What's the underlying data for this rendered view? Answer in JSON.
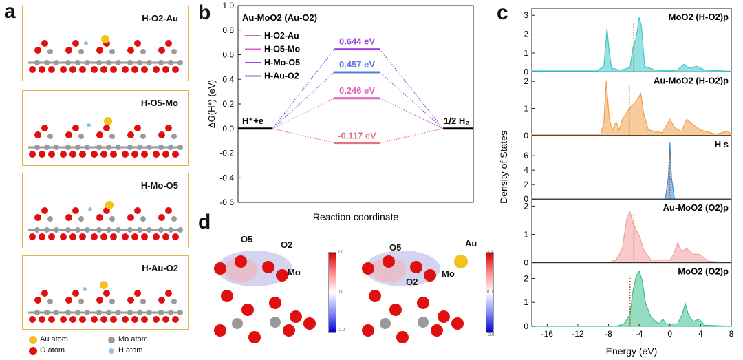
{
  "panel_labels": {
    "a": "a",
    "b": "b",
    "c": "c",
    "d": "d"
  },
  "panel_a": {
    "tiles": [
      {
        "title": "H-O2-Au"
      },
      {
        "title": "H-O5-Mo"
      },
      {
        "title": "H-Mo-O5"
      },
      {
        "title": "H-Au-O2"
      }
    ],
    "legend": {
      "au": "Au atom",
      "o": "O atom",
      "mo": "Mo atom",
      "h": "H atom"
    },
    "colors": {
      "au": "#f2c21b",
      "o": "#e01010",
      "mo": "#9a9a9a",
      "h": "#8fc4ec",
      "border": "#e3b24d"
    }
  },
  "panel_d": {
    "labels_left": {
      "o5": "O5",
      "o2": "O2",
      "mo": "Mo"
    },
    "labels_right": {
      "o5": "O5",
      "o2": "O2",
      "mo": "Mo",
      "au": "Au"
    },
    "colorbar": {
      "max": "2.0",
      "mid": "0.0",
      "min": "-2.0"
    }
  },
  "chart_data": [
    {
      "type": "line",
      "title": "Au-MoO2 (Au-O2)",
      "xlabel": "Reaction coordinate",
      "ylabel": "ΔG(H*) (eV)",
      "ylim": [
        -0.6,
        1.0
      ],
      "yticks": [
        "1.0",
        "0.8",
        "0.6",
        "0.4",
        "0.2",
        "0.0",
        "-0.2",
        "-0.4",
        "-0.6"
      ],
      "start_label": "H⁺+e",
      "end_label": "1/2 H₂",
      "series": [
        {
          "name": "H-O2-Au",
          "value": -0.117,
          "label": "-0.117 eV",
          "color": "#e8707a"
        },
        {
          "name": "H-O5-Mo",
          "value": 0.246,
          "label": "0.246 eV",
          "color": "#e060c0"
        },
        {
          "name": "H-Mo-O5",
          "value": 0.644,
          "label": "0.644 eV",
          "color": "#9b45e0"
        },
        {
          "name": "H-Au-O2",
          "value": 0.457,
          "label": "0.457 eV",
          "color": "#5a7ae0"
        }
      ]
    },
    {
      "type": "area",
      "xlabel": "Energy (eV)",
      "ylabel": "Density of States",
      "xlim": [
        -18,
        8
      ],
      "xticks": [
        "-16",
        "-12",
        "-8",
        "-4",
        "0",
        "4",
        "8"
      ],
      "panels": [
        {
          "name": "MoO2 (H-O2)p",
          "ylim": [
            0,
            3.3
          ],
          "yticks": [
            "0",
            "1",
            "2",
            "3"
          ],
          "color": "#3cc8c8",
          "dotted_x": -4.7,
          "points": [
            [
              -18,
              0.05
            ],
            [
              -9.5,
              0.05
            ],
            [
              -8.6,
              0.3
            ],
            [
              -8.2,
              2.3
            ],
            [
              -7.9,
              1.0
            ],
            [
              -7.6,
              0.2
            ],
            [
              -6.6,
              0.1
            ],
            [
              -5.8,
              0.15
            ],
            [
              -5.2,
              0.25
            ],
            [
              -4.8,
              1.3
            ],
            [
              -4.4,
              1.8
            ],
            [
              -4.0,
              2.9
            ],
            [
              -3.7,
              2.4
            ],
            [
              -3.3,
              0.3
            ],
            [
              -2,
              0.1
            ],
            [
              0,
              0.05
            ],
            [
              1,
              0.1
            ],
            [
              1.8,
              0.4
            ],
            [
              2.5,
              0.2
            ],
            [
              3.5,
              0.3
            ],
            [
              4.5,
              0.1
            ],
            [
              8,
              0.03
            ]
          ]
        },
        {
          "name": "Au-MoO2 (H-O2)p",
          "ylim": [
            0,
            2.3
          ],
          "yticks": [
            "0",
            "1",
            "2"
          ],
          "color": "#f0a04a",
          "dotted_x": -5.3,
          "points": [
            [
              -18,
              0.05
            ],
            [
              -9,
              0.05
            ],
            [
              -8.6,
              0.5
            ],
            [
              -8.3,
              2.0
            ],
            [
              -7.9,
              0.6
            ],
            [
              -7.5,
              0.2
            ],
            [
              -7,
              0.5
            ],
            [
              -6.6,
              0.2
            ],
            [
              -6.2,
              0.6
            ],
            [
              -5.5,
              0.9
            ],
            [
              -5,
              1.1
            ],
            [
              -4.6,
              1.2
            ],
            [
              -4.2,
              1.35
            ],
            [
              -3.8,
              1.55
            ],
            [
              -3.4,
              0.8
            ],
            [
              -2.8,
              0.2
            ],
            [
              -1,
              0.1
            ],
            [
              0,
              0.6
            ],
            [
              0.6,
              0.3
            ],
            [
              1.5,
              0.15
            ],
            [
              2.2,
              0.6
            ],
            [
              3,
              0.4
            ],
            [
              4,
              0.2
            ],
            [
              6,
              0.05
            ],
            [
              7.5,
              0.15
            ],
            [
              8,
              0.05
            ]
          ]
        },
        {
          "name": "H s",
          "ylim": [
            0,
            8.6
          ],
          "yticks": [
            "0",
            "2",
            "4",
            "6"
          ],
          "color": "#3a8ee0",
          "dotted_x": 0,
          "points": [
            [
              -18,
              0
            ],
            [
              -0.6,
              0
            ],
            [
              -0.2,
              3.0
            ],
            [
              0,
              7.8
            ],
            [
              0.2,
              3.0
            ],
            [
              0.6,
              0
            ],
            [
              8,
              0
            ]
          ]
        },
        {
          "name": "Au-MoO2 (O2)p",
          "ylim": [
            0,
            2.2
          ],
          "yticks": [
            "0",
            "1",
            "2"
          ],
          "color": "#f0a0a0",
          "dotted_x": -4.7,
          "points": [
            [
              -18,
              0
            ],
            [
              -8,
              0
            ],
            [
              -7,
              0.1
            ],
            [
              -6.2,
              0.5
            ],
            [
              -5.6,
              1.6
            ],
            [
              -5.2,
              1.8
            ],
            [
              -4.8,
              1.4
            ],
            [
              -4.3,
              1.1
            ],
            [
              -3.9,
              0.9
            ],
            [
              -3.5,
              0.5
            ],
            [
              -2.5,
              0.1
            ],
            [
              0,
              0.1
            ],
            [
              0.5,
              0.3
            ],
            [
              1,
              0.7
            ],
            [
              1.5,
              0.4
            ],
            [
              2.2,
              0.5
            ],
            [
              3,
              0.3
            ],
            [
              3.8,
              0.3
            ],
            [
              5,
              0.05
            ],
            [
              8,
              0
            ]
          ]
        },
        {
          "name": "MoO2 (O2)p",
          "ylim": [
            0,
            2.6
          ],
          "yticks": [
            "0",
            "1",
            "2"
          ],
          "color": "#3cc090",
          "dotted_x": -5.2,
          "points": [
            [
              -18,
              0
            ],
            [
              -7,
              0
            ],
            [
              -6,
              0.1
            ],
            [
              -5.2,
              0.5
            ],
            [
              -4.8,
              1.5
            ],
            [
              -4.4,
              2.1
            ],
            [
              -4,
              2.3
            ],
            [
              -3.6,
              1.9
            ],
            [
              -3.2,
              1.0
            ],
            [
              -2.5,
              0.4
            ],
            [
              -1.5,
              0.1
            ],
            [
              -0.9,
              0.3
            ],
            [
              -0.5,
              0.1
            ],
            [
              1,
              0.1
            ],
            [
              1.6,
              0.5
            ],
            [
              2,
              0.95
            ],
            [
              2.4,
              0.5
            ],
            [
              3,
              0.2
            ],
            [
              3.8,
              0.3
            ],
            [
              4.5,
              0.05
            ],
            [
              8,
              0
            ]
          ]
        }
      ]
    }
  ]
}
